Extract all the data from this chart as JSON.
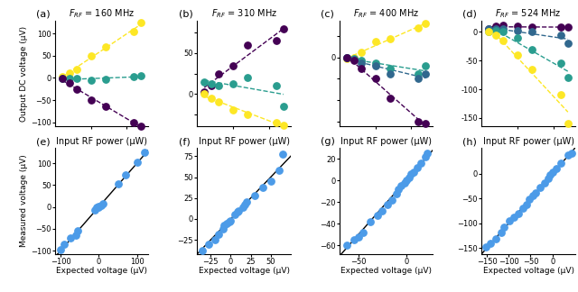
{
  "titles_top": [
    "$F_{RF}$ = 160 MHz",
    "$F_{RF}$ = 310 MHz",
    "$F_{RF}$ = 400 MHz",
    "$F_{RF}$ = 524 MHz"
  ],
  "panel_labels_top": [
    "(a)",
    "(b)",
    "(c)",
    "(d)"
  ],
  "panel_labels_bot": [
    "(e)",
    "(f)",
    "(g)",
    "(h)"
  ],
  "shared_xlabel": "Input RF power (μW)",
  "ylabel_top": "Output DC voltage (μV)",
  "xlabel_bot": "Expected voltage (μV)",
  "ylabel_bot": "Measured voltage (μV)",
  "colors": {
    "purple": "#440154",
    "teal": "#2a9d8f",
    "yellow": "#fde725",
    "blue": "#31688e"
  },
  "top_data": [
    {
      "x_vals": [
        1,
        2,
        3,
        5,
        7,
        11,
        12
      ],
      "series": [
        {
          "color": "yellow",
          "y": [
            3,
            12,
            20,
            50,
            70,
            105,
            125
          ]
        },
        {
          "color": "teal",
          "y": [
            -2,
            -2,
            -2,
            -5,
            -3,
            3,
            5
          ]
        },
        {
          "color": "purple",
          "y": [
            -2,
            -12,
            -25,
            -50,
            -65,
            -100,
            -110
          ]
        }
      ]
    },
    {
      "x_vals": [
        1,
        2,
        3,
        5,
        7,
        11,
        12
      ],
      "series": [
        {
          "color": "purple",
          "y": [
            3,
            10,
            25,
            35,
            60,
            65,
            80
          ]
        },
        {
          "color": "teal",
          "y": [
            15,
            12,
            10,
            12,
            20,
            10,
            -15
          ]
        },
        {
          "color": "yellow",
          "y": [
            0,
            -5,
            -10,
            -20,
            -25,
            -35,
            -38
          ]
        }
      ]
    },
    {
      "x_vals": [
        1,
        2,
        3,
        5,
        7,
        11,
        12
      ],
      "series": [
        {
          "color": "yellow",
          "y": [
            -1,
            0,
            5,
            15,
            18,
            28,
            32
          ]
        },
        {
          "color": "teal",
          "y": [
            0,
            -1,
            -3,
            -5,
            -10,
            -15,
            -8
          ]
        },
        {
          "color": "blue",
          "y": [
            0,
            -2,
            -5,
            -8,
            -15,
            -20,
            -15
          ]
        },
        {
          "color": "purple",
          "y": [
            0,
            -3,
            -10,
            -20,
            -38,
            -60,
            -62
          ]
        }
      ]
    },
    {
      "x_vals": [
        1,
        2,
        3,
        5,
        7,
        11,
        12
      ],
      "series": [
        {
          "color": "purple",
          "y": [
            5,
            10,
            12,
            10,
            8,
            8,
            8
          ]
        },
        {
          "color": "blue",
          "y": [
            5,
            5,
            5,
            2,
            0,
            -5,
            -20
          ]
        },
        {
          "color": "teal",
          "y": [
            0,
            2,
            0,
            -10,
            -30,
            -55,
            -80
          ]
        },
        {
          "color": "yellow",
          "y": [
            0,
            -5,
            -15,
            -40,
            -65,
            -110,
            -160
          ]
        }
      ]
    }
  ],
  "bot_data": [
    {
      "x": [
        -100,
        -90,
        -75,
        -60,
        -55,
        -10,
        -5,
        -2,
        0,
        5,
        10,
        50,
        70,
        100,
        120
      ],
      "y": [
        -97,
        -85,
        -72,
        -65,
        -55,
        -8,
        -2,
        0,
        2,
        3,
        8,
        52,
        73,
        102,
        125
      ],
      "xlim": [
        -115,
        130
      ],
      "ylim": [
        -108,
        135
      ],
      "xticks": [
        -100,
        0,
        100
      ],
      "yticks": [
        -100,
        -50,
        0,
        50,
        100
      ]
    },
    {
      "x": [
        -35,
        -28,
        -20,
        -15,
        -10,
        -8,
        -5,
        -2,
        0,
        5,
        8,
        10,
        15,
        18,
        20,
        30,
        40,
        50,
        60,
        65
      ],
      "y": [
        -38,
        -30,
        -25,
        -18,
        -12,
        -8,
        -6,
        -3,
        -2,
        5,
        8,
        10,
        14,
        17,
        20,
        28,
        38,
        45,
        58,
        78
      ],
      "xlim": [
        -42,
        75
      ],
      "ylim": [
        -42,
        85
      ],
      "xticks": [
        -25,
        0,
        25,
        50
      ],
      "yticks": [
        -25,
        0,
        25,
        50,
        75
      ]
    },
    {
      "x": [
        -62,
        -55,
        -50,
        -45,
        -38,
        -30,
        -25,
        -20,
        -15,
        -10,
        -8,
        -5,
        -2,
        0,
        3,
        5,
        8,
        12,
        15,
        20,
        22
      ],
      "y": [
        -60,
        -55,
        -52,
        -48,
        -38,
        -32,
        -28,
        -22,
        -18,
        -12,
        -8,
        -5,
        -2,
        0,
        3,
        6,
        8,
        12,
        16,
        22,
        25
      ],
      "xlim": [
        -70,
        28
      ],
      "ylim": [
        -68,
        30
      ],
      "xticks": [
        -50,
        0
      ],
      "yticks": [
        -60,
        -40,
        -20,
        0,
        20
      ]
    },
    {
      "x": [
        -152,
        -142,
        -130,
        -118,
        -110,
        -98,
        -88,
        -78,
        -68,
        -60,
        -52,
        -45,
        -38,
        -28,
        -18,
        -10,
        -5,
        0,
        10,
        20,
        35,
        45
      ],
      "y": [
        -148,
        -140,
        -132,
        -118,
        -108,
        -95,
        -88,
        -80,
        -70,
        -62,
        -52,
        -44,
        -38,
        -28,
        -18,
        -10,
        -3,
        3,
        10,
        22,
        38,
        42
      ],
      "xlim": [
        -162,
        52
      ],
      "ylim": [
        -162,
        52
      ],
      "xticks": [
        -150,
        -100,
        -50,
        0
      ],
      "yticks": [
        -150,
        -100,
        -50,
        0
      ]
    }
  ],
  "top_ylims": [
    [
      -110,
      130
    ],
    [
      -40,
      90
    ],
    [
      -65,
      35
    ],
    [
      -165,
      20
    ]
  ],
  "top_yticks": [
    [
      -100,
      -50,
      0,
      50,
      100
    ],
    [
      -25,
      0,
      25,
      50,
      75
    ],
    [
      -60,
      -40,
      -20,
      0,
      20
    ],
    [
      -150,
      -100,
      -50,
      0
    ]
  ],
  "top_xlims": [
    [
      0,
      13
    ],
    [
      0,
      13
    ],
    [
      0,
      13
    ],
    [
      0,
      13
    ]
  ],
  "top_xticks": [
    [
      5,
      10
    ],
    [
      5,
      10
    ],
    [
      5,
      10
    ],
    [
      5,
      10
    ]
  ]
}
